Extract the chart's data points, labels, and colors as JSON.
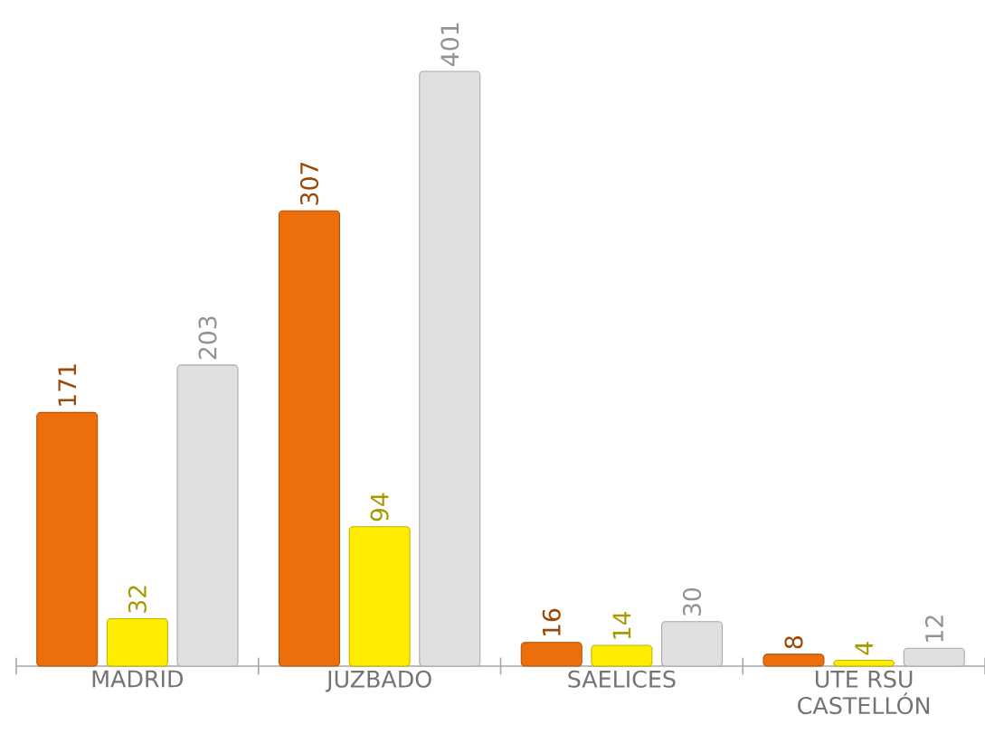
{
  "chart_data": {
    "type": "bar",
    "categories": [
      "MADRID",
      "JUZBADO",
      "SAELICES",
      "UTE RSU CASTELLÓN"
    ],
    "series": [
      {
        "color": "#ec6f0b",
        "values": [
          171,
          307,
          16,
          8
        ]
      },
      {
        "color": "#ffec00",
        "values": [
          32,
          94,
          14,
          4
        ]
      },
      {
        "color": "#e0e0e0",
        "values": [
          203,
          401,
          30,
          12
        ]
      }
    ],
    "data_labels": true,
    "grid": false
  }
}
